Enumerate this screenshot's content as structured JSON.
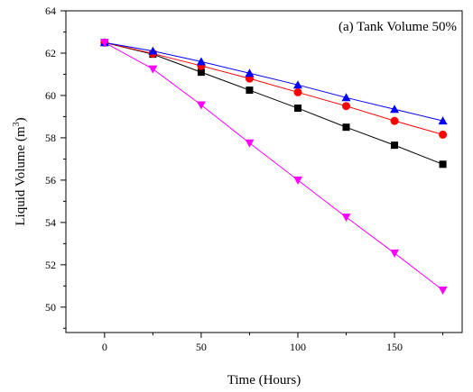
{
  "chart_data": {
    "type": "line",
    "annotation": "(a) Tank Volume 50%",
    "xlabel": "Time (Hours)",
    "ylabel_main": "Liquid Volume (m",
    "ylabel_sup": "3",
    "ylabel_close": ")",
    "xlim": [
      -20,
      185
    ],
    "ylim": [
      48.8,
      64
    ],
    "x_ticks": [
      0,
      50,
      100,
      150
    ],
    "x_minor_ticks": [
      25,
      75,
      125,
      175
    ],
    "y_ticks": [
      50,
      52,
      54,
      56,
      58,
      60,
      62,
      64
    ],
    "y_minor_ticks": [
      49,
      51,
      53,
      55,
      57,
      59,
      61,
      63
    ],
    "x": [
      0,
      25,
      50,
      75,
      100,
      125,
      150,
      175
    ],
    "series": [
      {
        "color": "#000000",
        "marker": "square",
        "values": [
          62.5,
          61.95,
          61.1,
          60.25,
          59.4,
          58.5,
          57.65,
          56.75
        ]
      },
      {
        "color": "#ff0000",
        "marker": "circle",
        "values": [
          62.5,
          61.98,
          61.4,
          60.8,
          60.15,
          59.5,
          58.8,
          58.15
        ]
      },
      {
        "color": "#0000ff",
        "marker": "triangle-up",
        "values": [
          62.5,
          62.1,
          61.6,
          61.05,
          60.5,
          59.9,
          59.35,
          58.8
        ]
      },
      {
        "color": "#ff00ff",
        "marker": "triangle-down",
        "values": [
          62.5,
          61.25,
          59.55,
          57.75,
          56.0,
          54.25,
          52.55,
          50.8
        ]
      }
    ]
  }
}
